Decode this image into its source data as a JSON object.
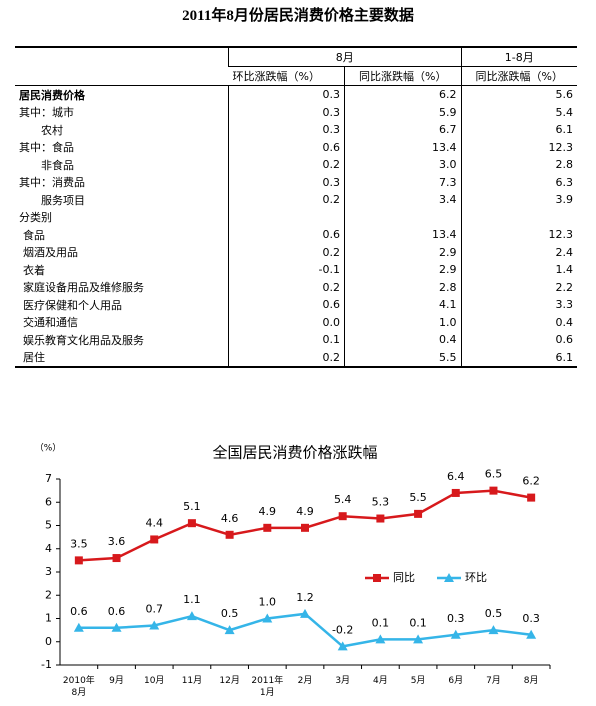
{
  "title": "2011年8月份居民消费价格主要数据",
  "table": {
    "header": [
      [
        "8月",
        "1-8月"
      ],
      [
        "环比涨跌幅（%）",
        "同比涨跌幅（%）",
        "同比涨跌幅（%）"
      ]
    ],
    "rows": [
      [
        "居民消费价格",
        "0.3",
        "6.2",
        "5.6"
      ],
      [
        "其中：城市",
        "0.3",
        "5.9",
        "5.4"
      ],
      [
        "农村",
        "0.3",
        "6.7",
        "6.1"
      ],
      [
        "其中：食品",
        "0.6",
        "13.4",
        "12.3"
      ],
      [
        "非食品",
        "0.2",
        "3.0",
        "2.8"
      ],
      [
        "其中：消费品",
        "0.3",
        "7.3",
        "6.3"
      ],
      [
        "服务项目",
        "0.2",
        "3.4",
        "3.9"
      ],
      [
        "分类别"
      ],
      [
        "食品",
        "0.6",
        "13.4",
        "12.3"
      ],
      [
        "烟酒及用品",
        "0.2",
        "2.9",
        "2.4"
      ],
      [
        "衣着",
        "-0.1",
        "2.9",
        "1.4"
      ],
      [
        "家庭设备用品及维修服务",
        "0.2",
        "2.8",
        "2.2"
      ],
      [
        "医疗保健和个人用品",
        "0.6",
        "4.1",
        "3.3"
      ],
      [
        "交通和通信",
        "0.0",
        "1.0",
        "0.4"
      ],
      [
        "娱乐教育文化用品及服务",
        "0.1",
        "0.4",
        "0.6"
      ],
      [
        "居住",
        "0.2",
        "5.5",
        "6.1"
      ]
    ]
  },
  "chart_data": {
    "type": "line",
    "title": "全国居民消费价格涨跌幅",
    "y_label": "（%）",
    "categories": [
      "2010年8月",
      "9月",
      "10月",
      "11月",
      "12月",
      "2011年1月",
      "2月",
      "3月",
      "4月",
      "5月",
      "6月",
      "7月",
      "8月"
    ],
    "series": [
      {
        "name": "同比",
        "color": "#d7191c",
        "marker": "square",
        "values": [
          3.5,
          3.6,
          4.4,
          5.1,
          4.6,
          4.9,
          4.9,
          5.4,
          5.3,
          5.5,
          6.4,
          6.5,
          6.2
        ],
        "value_labels": [
          "3.5",
          "3.6",
          "4.4",
          "5.1",
          "4.6",
          "4.9",
          "4.9",
          "5.4",
          "5.3",
          "5.5",
          "6.4",
          "6.5",
          "6.2"
        ]
      },
      {
        "name": "环比",
        "color": "#35b5e8",
        "marker": "triangle",
        "values": [
          0.6,
          0.6,
          0.7,
          1.1,
          0.5,
          1.0,
          1.2,
          -0.2,
          0.1,
          0.1,
          0.3,
          0.5,
          0.3
        ],
        "value_labels": [
          "0.6",
          "0.6",
          "0.7",
          "1.1",
          "0.5",
          "1.0",
          "1.2",
          "-0.2",
          "0.1",
          "0.1",
          "0.3",
          "0.5",
          "0.3"
        ]
      }
    ],
    "ylim": [
      -1,
      7
    ],
    "yticks": [
      -1,
      0,
      1,
      2,
      3,
      4,
      5,
      6,
      7
    ],
    "grid": false
  }
}
